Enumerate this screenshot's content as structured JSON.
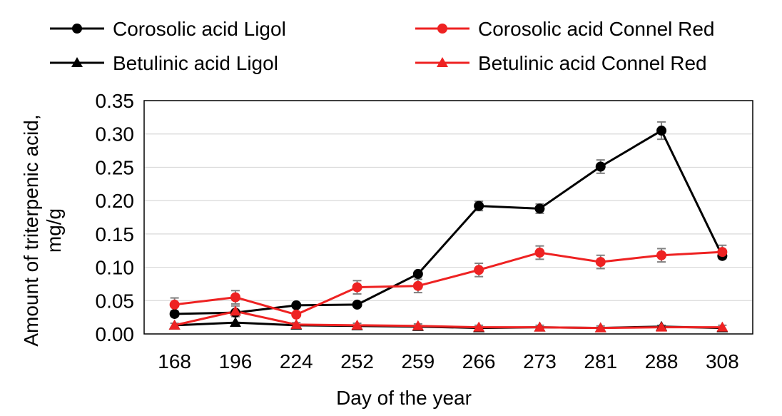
{
  "chart_data": {
    "type": "line",
    "title": "",
    "xlabel": "Day of the year",
    "ylabel": "Amount of triterpenic acid, mg/g",
    "ylabel_lines": [
      "Amount of triterpenic acid,",
      "mg/g"
    ],
    "categories": [
      "168",
      "196",
      "224",
      "252",
      "259",
      "266",
      "273",
      "281",
      "288",
      "308"
    ],
    "yticks": [
      "0.00",
      "0.05",
      "0.10",
      "0.15",
      "0.20",
      "0.25",
      "0.30",
      "0.35"
    ],
    "ylim": [
      0,
      0.35
    ],
    "grid": true,
    "legend_position": "top",
    "series": [
      {
        "name": "Corosolic acid Ligol",
        "color": "#000000",
        "marker": "circle",
        "values": [
          0.03,
          0.032,
          0.043,
          0.044,
          0.09,
          0.192,
          0.188,
          0.251,
          0.305,
          0.117
        ],
        "errors": [
          0,
          0,
          0,
          0,
          0,
          0.007,
          0.007,
          0.01,
          0.013,
          0
        ]
      },
      {
        "name": "Corosolic acid Connel Red",
        "color": "#ee2222",
        "marker": "circle",
        "values": [
          0.044,
          0.055,
          0.029,
          0.07,
          0.072,
          0.096,
          0.122,
          0.108,
          0.118,
          0.123
        ],
        "errors": [
          0.01,
          0.01,
          0,
          0.01,
          0.01,
          0.01,
          0.01,
          0.01,
          0.01,
          0.01
        ]
      },
      {
        "name": "Betulinic acid Ligol",
        "color": "#000000",
        "marker": "triangle",
        "values": [
          0.013,
          0.017,
          0.013,
          0.012,
          0.011,
          0.009,
          0.01,
          0.009,
          0.011,
          0.009
        ],
        "errors": [
          0,
          0,
          0,
          0,
          0,
          0,
          0,
          0,
          0,
          0
        ]
      },
      {
        "name": "Betulinic acid Connel Red",
        "color": "#ee2222",
        "marker": "triangle",
        "values": [
          0.013,
          0.034,
          0.014,
          0.013,
          0.012,
          0.01,
          0.01,
          0.009,
          0.01,
          0.01
        ],
        "errors": [
          0.003,
          0.008,
          0.003,
          0.003,
          0.003,
          0.003,
          0.003,
          0.003,
          0.003,
          0.003
        ]
      }
    ]
  }
}
